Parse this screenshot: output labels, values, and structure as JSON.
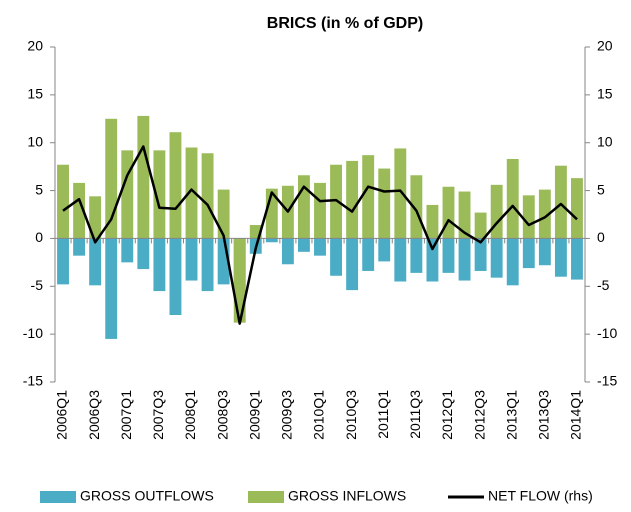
{
  "chart_data": {
    "type": "bar-line",
    "title": "BRICS (in % of GDP)",
    "categories": [
      "2006Q1",
      null,
      "2006Q3",
      null,
      "2007Q1",
      null,
      "2007Q3",
      null,
      "2008Q1",
      null,
      "2008Q3",
      null,
      "2009Q1",
      null,
      "2009Q3",
      null,
      "2010Q1",
      null,
      "2010Q3",
      null,
      "2011Q1",
      null,
      "2011Q3",
      null,
      "2012Q1",
      null,
      "2012Q3",
      null,
      "2013Q1",
      null,
      "2013Q3",
      null,
      "2014Q1"
    ],
    "series": [
      {
        "name": "GROSS OUTFLOWS",
        "color": "#4bacc6",
        "type": "bar",
        "values": [
          -4.8,
          -1.8,
          -4.9,
          -10.5,
          -2.5,
          -3.2,
          -5.5,
          -8.0,
          -4.4,
          -5.5,
          -4.8,
          -5.2,
          -1.6,
          -0.4,
          -2.7,
          -1.4,
          -1.8,
          -3.9,
          -5.4,
          -3.4,
          -2.4,
          -4.5,
          -3.6,
          -4.5,
          -3.6,
          -4.4,
          -3.4,
          -4.1,
          -4.9,
          -3.1,
          -2.8,
          -4.0,
          -4.3
        ]
      },
      {
        "name": "GROSS INFLOWS",
        "color": "#9bbb59",
        "type": "bar",
        "values": [
          7.7,
          5.8,
          4.4,
          12.5,
          9.2,
          12.8,
          9.2,
          11.1,
          9.5,
          8.9,
          5.1,
          -8.8,
          1.4,
          5.2,
          5.5,
          6.6,
          5.8,
          7.7,
          8.1,
          8.7,
          7.3,
          9.4,
          6.6,
          3.5,
          5.4,
          4.9,
          2.7,
          5.6,
          8.3,
          4.5,
          5.1,
          7.6,
          6.3
        ]
      },
      {
        "name": "NET FLOW (rhs)",
        "color": "#000000",
        "type": "line",
        "axis": "y2",
        "values": [
          2.9,
          4.1,
          -0.4,
          2.0,
          6.6,
          9.6,
          3.2,
          3.1,
          5.1,
          3.5,
          0.3,
          -8.9,
          -1.0,
          4.8,
          2.8,
          5.4,
          3.9,
          4.0,
          2.8,
          5.4,
          4.9,
          5.0,
          2.9,
          -1.1,
          1.9,
          0.6,
          -0.4,
          1.6,
          3.4,
          1.4,
          2.2,
          3.6,
          2.0
        ]
      }
    ],
    "ylim": [
      -15,
      20
    ],
    "yticks": [
      -15,
      -10,
      -5,
      0,
      5,
      10,
      15,
      20
    ],
    "y2lim": [
      -15,
      20
    ],
    "y2ticks": [
      -15,
      -10,
      -5,
      0,
      5,
      10,
      15,
      20
    ],
    "legend": "bottom"
  }
}
